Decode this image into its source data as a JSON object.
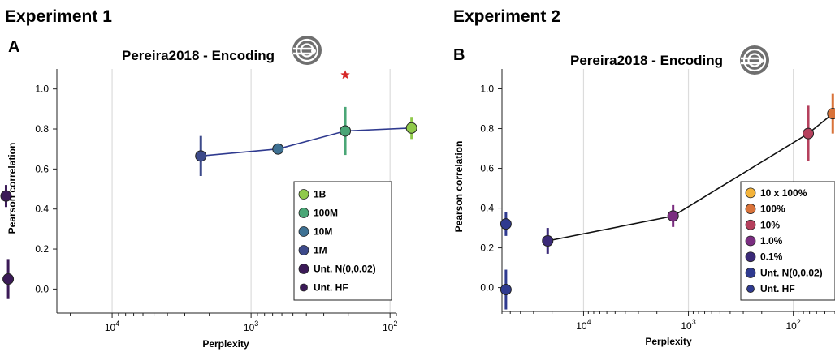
{
  "panels": [
    {
      "experiment_title": "Experiment 1",
      "panel_letter": "A",
      "icon": "brain-score-logo-icon",
      "chart_data": {
        "type": "scatter",
        "title": "Pereira2018 - Encoding",
        "xlabel": "Perplexity",
        "ylabel": "Pearson correlation",
        "x_scale": "log-reversed",
        "xlim_perplexity": [
          90,
          25000
        ],
        "ylim": [
          -0.12,
          1.1
        ],
        "yticks": [
          "0.0",
          "0.2",
          "0.4",
          "0.6",
          "0.8",
          "1.0"
        ],
        "xticks": [
          {
            "base": "10",
            "exp": "4"
          },
          {
            "base": "10",
            "exp": "3"
          },
          {
            "base": "10",
            "exp": "2"
          }
        ],
        "grid": "vertical",
        "line_color": "#2f3a8f",
        "series": [
          {
            "name": "1B",
            "color": "#8fc94a",
            "points": [
              {
                "x": 70,
                "y": 0.805,
                "err": 0.055
              }
            ]
          },
          {
            "name": "100M",
            "color": "#4aa676",
            "points": [
              {
                "x": 210,
                "y": 0.79,
                "err": 0.12
              }
            ]
          },
          {
            "name": "10M",
            "color": "#3e7193",
            "points": [
              {
                "x": 640,
                "y": 0.7,
                "err": 0.0
              }
            ]
          },
          {
            "name": "1M",
            "color": "#3d4a8a",
            "points": [
              {
                "x": 2300,
                "y": 0.665,
                "err": 0.1
              }
            ]
          },
          {
            "name": "Unt. N(0,0.02)",
            "color": "#3b1a57",
            "points": [
              {
                "x": 56000,
                "y": 0.05,
                "err": 0.1
              }
            ]
          },
          {
            "name": "Unt. HF",
            "color": "#3b1a57",
            "points": [
              {
                "x": 58000,
                "y": 0.465,
                "err": 0.055
              }
            ]
          }
        ],
        "trend_line": [
          [
            2300,
            0.665
          ],
          [
            640,
            0.7
          ],
          [
            210,
            0.79
          ],
          [
            70,
            0.805
          ]
        ],
        "star": {
          "x": 210,
          "y": 1.07,
          "color": "#d62728"
        },
        "legend_position": "lower-right"
      }
    },
    {
      "experiment_title": "Experiment 2",
      "panel_letter": "B",
      "icon": "brain-score-logo-icon",
      "chart_data": {
        "type": "scatter",
        "title": "Pereira2018 - Encoding",
        "xlabel": "Perplexity",
        "ylabel": "Pearson correlation",
        "x_scale": "log-reversed",
        "xlim_perplexity": [
          40,
          60000
        ],
        "ylim": [
          -0.12,
          1.1
        ],
        "yticks": [
          "0.0",
          "0.2",
          "0.4",
          "0.6",
          "0.8",
          "1.0"
        ],
        "xticks": [
          {
            "base": "10",
            "exp": "4"
          },
          {
            "base": "10",
            "exp": "3"
          },
          {
            "base": "10",
            "exp": "2"
          }
        ],
        "grid": "vertical",
        "line_color": "#111111",
        "series": [
          {
            "name": "10 x 100%",
            "color": "#f3b33a",
            "points": [
              {
                "x": 35,
                "y": 0.85,
                "err": 0.13
              }
            ]
          },
          {
            "name": "100%",
            "color": "#d9733a",
            "points": [
              {
                "x": 42,
                "y": 0.875,
                "err": 0.1
              }
            ]
          },
          {
            "name": "10%",
            "color": "#b5405d",
            "points": [
              {
                "x": 72,
                "y": 0.775,
                "err": 0.14
              }
            ]
          },
          {
            "name": "1.0%",
            "color": "#7a2d80",
            "points": [
              {
                "x": 1400,
                "y": 0.36,
                "err": 0.055
              }
            ]
          },
          {
            "name": "0.1%",
            "color": "#3b2a78",
            "points": [
              {
                "x": 22000,
                "y": 0.235,
                "err": 0.065
              }
            ]
          },
          {
            "name": "Unt. N(0,0.02)",
            "color": "#2f3a8f",
            "points": [
              {
                "x": 55000,
                "y": -0.01,
                "err": 0.1
              }
            ]
          },
          {
            "name": "Unt. HF",
            "color": "#2f3a8f",
            "points": [
              {
                "x": 55000,
                "y": 0.32,
                "err": 0.06
              }
            ]
          }
        ],
        "trend_line": [
          [
            22000,
            0.235
          ],
          [
            1400,
            0.36
          ],
          [
            72,
            0.775
          ],
          [
            42,
            0.875
          ],
          [
            35,
            0.85
          ]
        ],
        "legend_position": "lower-right"
      }
    }
  ]
}
